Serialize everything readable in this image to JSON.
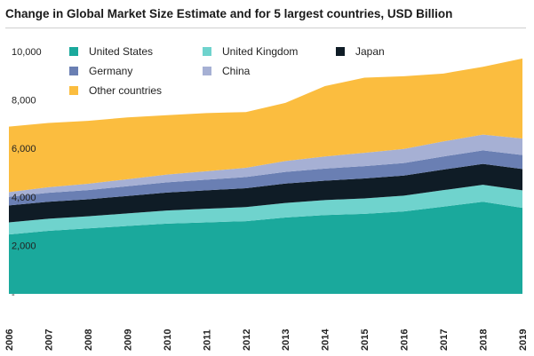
{
  "chart_data": {
    "type": "area",
    "stacked": true,
    "title": "Change in Global Market Size Estimate and for 5 largest countries, USD Billion",
    "xlabel": "",
    "ylabel": "",
    "x": [
      "2006",
      "2007",
      "2008",
      "2009",
      "2010",
      "2011",
      "2012",
      "2013",
      "2014",
      "2015",
      "2016",
      "2017",
      "2018",
      "2019"
    ],
    "ylim": [
      0,
      10000
    ],
    "yticks": [
      0,
      2000,
      4000,
      6000,
      8000,
      10000
    ],
    "ytick_labels": [
      "-",
      "2,000",
      "4,000",
      "6,000",
      "8,000",
      "10,000"
    ],
    "legend_position": "top-left",
    "series": [
      {
        "name": "United States",
        "color": "#1aa99c",
        "values": [
          2450,
          2600,
          2700,
          2800,
          2900,
          2950,
          3000,
          3150,
          3250,
          3300,
          3400,
          3600,
          3800,
          3550
        ]
      },
      {
        "name": "United Kingdom",
        "color": "#6fd3cd",
        "values": [
          500,
          500,
          500,
          520,
          540,
          560,
          580,
          600,
          620,
          640,
          650,
          680,
          700,
          720
        ]
      },
      {
        "name": "Japan",
        "color": "#0f1c26",
        "values": [
          700,
          700,
          700,
          720,
          740,
          760,
          780,
          800,
          800,
          820,
          830,
          850,
          860,
          880
        ]
      },
      {
        "name": "Germany",
        "color": "#6a7fb3",
        "values": [
          350,
          370,
          380,
          400,
          420,
          440,
          460,
          480,
          500,
          510,
          520,
          540,
          560,
          580
        ]
      },
      {
        "name": "China",
        "color": "#a6b0d4",
        "values": [
          200,
          230,
          260,
          290,
          320,
          350,
          380,
          450,
          500,
          550,
          580,
          620,
          650,
          680
        ]
      },
      {
        "name": "Other countries",
        "color": "#fbbd3f",
        "values": [
          2700,
          2650,
          2600,
          2550,
          2450,
          2400,
          2300,
          2400,
          2900,
          3100,
          3000,
          2800,
          2800,
          3300
        ]
      }
    ]
  }
}
